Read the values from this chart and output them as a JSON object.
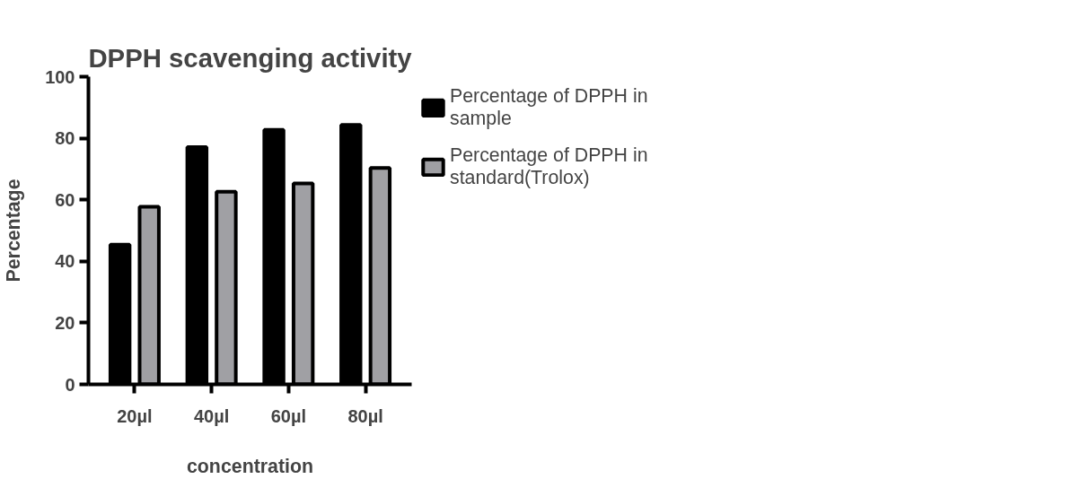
{
  "chart_data": {
    "type": "bar",
    "title": "DPPH scavenging activity",
    "xlabel": "concentration",
    "ylabel": "Percentage",
    "categories": [
      "20µl",
      "40µl",
      "60µl",
      "80µl"
    ],
    "series": [
      {
        "name": "Percentage of DPPH in sample",
        "color": "#000000",
        "values": [
          45.4,
          77.1,
          82.7,
          84.3
        ]
      },
      {
        "name": "Percentage of DPPH in standard(Trolox)",
        "color": "#a0a0a4",
        "values": [
          57.7,
          62.6,
          65.3,
          70.3
        ]
      }
    ],
    "ylim": [
      0,
      100
    ],
    "yticks": [
      0,
      20,
      40,
      60,
      80,
      100
    ],
    "grid": false,
    "legend": "right"
  }
}
